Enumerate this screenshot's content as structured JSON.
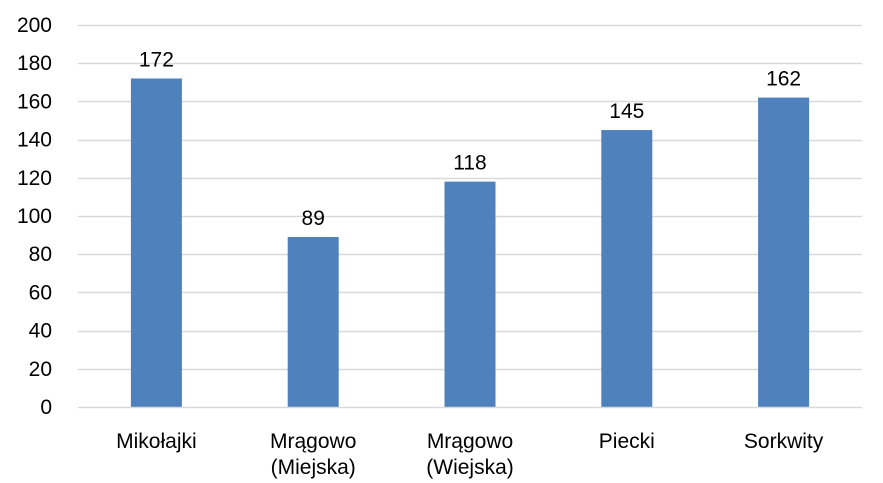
{
  "chart_data": {
    "type": "bar",
    "categories": [
      [
        "Mikołajki"
      ],
      [
        "Mrągowo",
        "(Miejska)"
      ],
      [
        "Mrągowo",
        "(Wiejska)"
      ],
      [
        "Piecki"
      ],
      [
        "Sorkwity"
      ]
    ],
    "values": [
      172,
      89,
      118,
      145,
      162
    ],
    "data_labels": [
      "172",
      "89",
      "118",
      "145",
      "162"
    ],
    "title": "",
    "xlabel": "",
    "ylabel": "",
    "ylim": [
      0,
      200
    ],
    "yticks": [
      0,
      20,
      40,
      60,
      80,
      100,
      120,
      140,
      160,
      180,
      200
    ],
    "grid": true,
    "legend": "none",
    "colors": {
      "bar": "#4f81bd",
      "grid": "#d9d9d9",
      "axis": "#d9d9d9",
      "text": "#000000"
    }
  }
}
